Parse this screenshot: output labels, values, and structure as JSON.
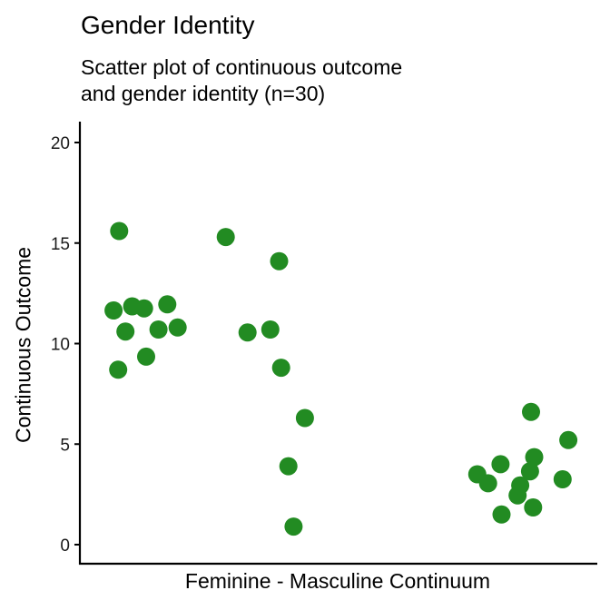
{
  "chart_data": {
    "type": "scatter",
    "title": "Gender Identity",
    "subtitle_lines": [
      "Scatter plot of continuous outcome",
      "and gender identity (n=30)"
    ],
    "xlabel": "Feminine - Masculine Continuum",
    "ylabel": "Continuous Outcome",
    "ylim": [
      -1,
      21
    ],
    "yticks": [
      0,
      5,
      10,
      15,
      20
    ],
    "ytick_labels": [
      "0",
      "5",
      "10",
      "15",
      "20"
    ],
    "xticks": [],
    "grid": false,
    "legend": null,
    "point_color": "#228B22",
    "n": 30,
    "note": "x positions are jittered pixel coordinates along an unlabeled continuum (0=left axis, 1=right end)",
    "points": [
      {
        "x": 0.074,
        "y": 8.7
      },
      {
        "x": 0.065,
        "y": 11.65
      },
      {
        "x": 0.076,
        "y": 15.6
      },
      {
        "x": 0.088,
        "y": 10.6
      },
      {
        "x": 0.101,
        "y": 11.85
      },
      {
        "x": 0.124,
        "y": 11.75
      },
      {
        "x": 0.128,
        "y": 9.35
      },
      {
        "x": 0.152,
        "y": 10.7
      },
      {
        "x": 0.169,
        "y": 11.95
      },
      {
        "x": 0.189,
        "y": 10.8
      },
      {
        "x": 0.282,
        "y": 15.3
      },
      {
        "x": 0.324,
        "y": 10.55
      },
      {
        "x": 0.368,
        "y": 10.7
      },
      {
        "x": 0.385,
        "y": 14.1
      },
      {
        "x": 0.389,
        "y": 8.8
      },
      {
        "x": 0.403,
        "y": 3.9
      },
      {
        "x": 0.413,
        "y": 0.9
      },
      {
        "x": 0.435,
        "y": 6.3
      },
      {
        "x": 0.768,
        "y": 3.5
      },
      {
        "x": 0.789,
        "y": 3.05
      },
      {
        "x": 0.813,
        "y": 4.0
      },
      {
        "x": 0.815,
        "y": 1.5
      },
      {
        "x": 0.846,
        "y": 2.45
      },
      {
        "x": 0.851,
        "y": 2.95
      },
      {
        "x": 0.87,
        "y": 3.65
      },
      {
        "x": 0.872,
        "y": 6.6
      },
      {
        "x": 0.876,
        "y": 1.85
      },
      {
        "x": 0.878,
        "y": 4.35
      },
      {
        "x": 0.933,
        "y": 3.25
      },
      {
        "x": 0.944,
        "y": 5.2
      }
    ]
  }
}
